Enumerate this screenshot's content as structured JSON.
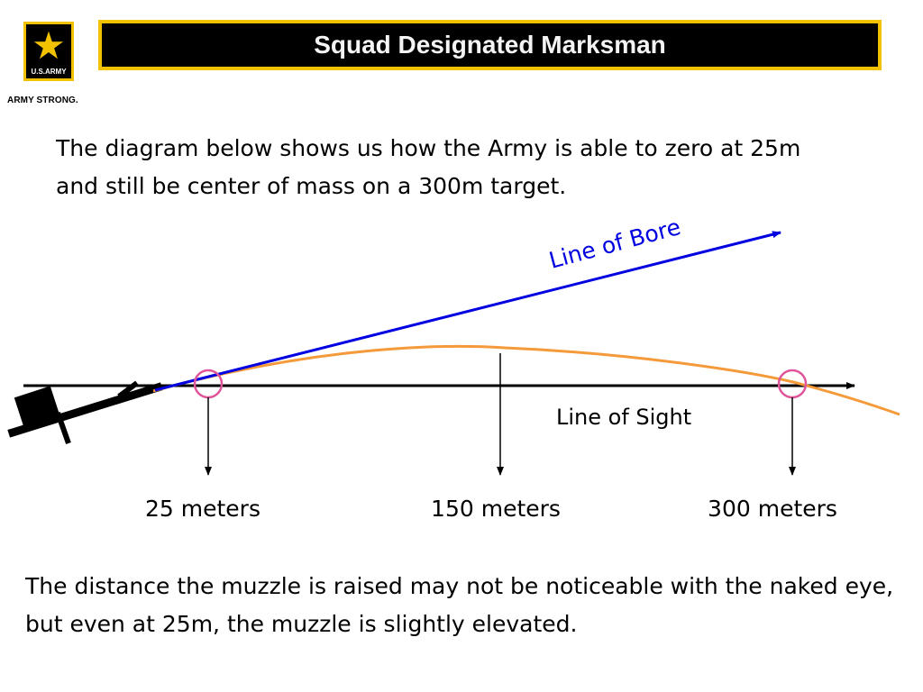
{
  "header": {
    "title": "Squad Designated Marksman",
    "logo_army": "U.S.ARMY",
    "logo_slogan": "ARMY STRONG."
  },
  "intro_text": "The diagram below shows us how the Army is able to zero at 25m and still be center of mass on a 300m target.",
  "diagram": {
    "line_of_bore_label": "Line of Bore",
    "line_of_sight_label": "Line of Sight",
    "distance_labels": [
      "25 meters",
      "150 meters",
      "300 meters"
    ],
    "colors": {
      "bore": "#0000e0",
      "trajectory": "#f59a3a",
      "sight": "#000000",
      "circle": "#e0559a"
    }
  },
  "outro_text": "The distance the muzzle is raised may not be noticeable with the naked eye, but even at 25m, the muzzle is slightly elevated."
}
